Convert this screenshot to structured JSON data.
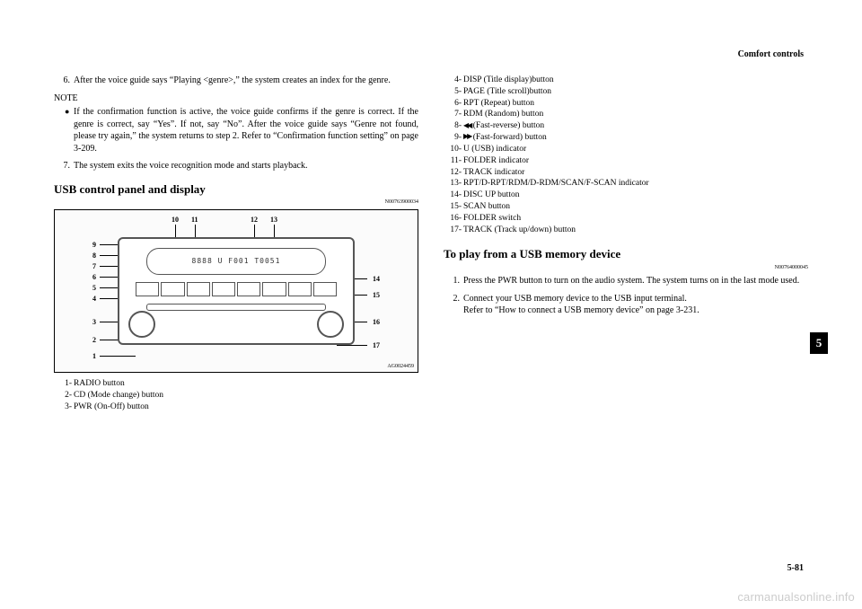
{
  "header": {
    "section": "Comfort controls"
  },
  "left": {
    "step6": {
      "num": "6.",
      "text": "After the voice guide says “Playing <genre>,” the system creates an index for the genre."
    },
    "note_label": "NOTE",
    "note_bullet": "If the confirmation function is active, the voice guide confirms if the genre is correct. If the genre is correct, say “Yes”. If not, say “No”. After the voice guide says “Genre not found, please try again,” the system returns to step 2. Refer to “Confirmation function setting” on page 3-209.",
    "step7": {
      "num": "7.",
      "text": "The system exits the voice recognition mode and starts playback."
    },
    "heading": "USB control panel and display",
    "heading_code": "N00763900034",
    "figure": {
      "display_text": "8888  U F001 T0051",
      "img_code": "AG0024459",
      "top_labels": {
        "l10": "10",
        "l11": "11",
        "l12": "12",
        "l13": "13"
      },
      "left_labels": {
        "l9": "9",
        "l8": "8",
        "l7": "7",
        "l6": "6",
        "l5": "5",
        "l4": "4",
        "l3": "3",
        "l2": "2",
        "l1": "1"
      },
      "right_labels": {
        "l14": "14",
        "l15": "15",
        "l16": "16",
        "l17": "17"
      }
    },
    "legend_below": [
      {
        "n": "1-",
        "t": "RADIO button"
      },
      {
        "n": "2-",
        "t": "CD (Mode change) button"
      },
      {
        "n": "3-",
        "t": "PWR (On-Off) button"
      }
    ]
  },
  "right": {
    "legend": [
      {
        "n": "4-",
        "t": "DISP (Title display)button"
      },
      {
        "n": "5-",
        "t": "PAGE (Title scroll)button"
      },
      {
        "n": "6-",
        "t": "RPT (Repeat) button"
      },
      {
        "n": "7-",
        "t": "RDM (Random) button"
      },
      {
        "n": "8-",
        "pre": "",
        "icon": "rev",
        "t": " (Fast-reverse) button"
      },
      {
        "n": "9-",
        "pre": "",
        "icon": "fwd",
        "t": " (Fast-forward) button"
      },
      {
        "n": "10-",
        "t": "U (USB) indicator"
      },
      {
        "n": "11-",
        "t": "FOLDER indicator"
      },
      {
        "n": "12-",
        "t": "TRACK indicator"
      },
      {
        "n": "13-",
        "t": "RPT/D-RPT/RDM/D-RDM/SCAN/F-SCAN indicator"
      },
      {
        "n": "14-",
        "t": "DISC UP button"
      },
      {
        "n": "15-",
        "t": "SCAN button"
      },
      {
        "n": "16-",
        "t": "FOLDER switch"
      },
      {
        "n": "17-",
        "t": "TRACK (Track up/down) button"
      }
    ],
    "heading2": "To play from a USB memory device",
    "heading2_code": "N00764000045",
    "steps": [
      {
        "num": "1.",
        "text": "Press the PWR button to turn on the audio system. The system turns on in the last mode used."
      },
      {
        "num": "2.",
        "text": "Connect your USB memory device to the USB input terminal.\nRefer to “How to connect a USB memory device” on page 3-231."
      }
    ]
  },
  "side_tab": "5",
  "page_number": "5-81",
  "watermark": "carmanualsonline.info"
}
